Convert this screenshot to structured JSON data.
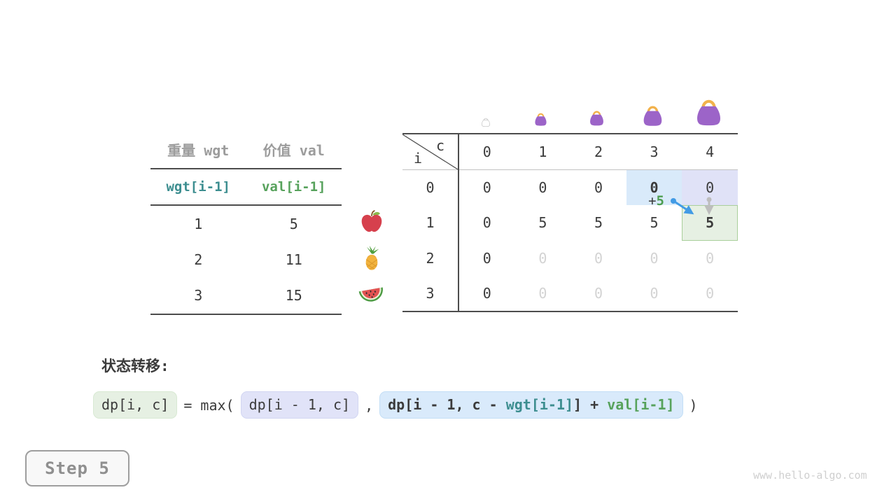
{
  "colors": {
    "accent_teal": "#3d8e90",
    "accent_green": "#57a25c",
    "highlight_blue": "#d9eafa",
    "highlight_lavender": "#e0e2f7",
    "highlight_green": "#e6f0e3",
    "arrow_blue": "#429be5",
    "arrow_gray": "#bdbdbd",
    "bag_purple": "#9c64c8",
    "bag_handle_orange": "#f2b24c"
  },
  "items_table": {
    "col_headers": [
      "重量 wgt",
      "价值 val"
    ],
    "formula_row": [
      "wgt[i-1]",
      "val[i-1]"
    ],
    "rows": [
      [
        "1",
        "5"
      ],
      [
        "2",
        "11"
      ],
      [
        "3",
        "15"
      ]
    ],
    "fruits": [
      "apple",
      "pineapple",
      "watermelon"
    ]
  },
  "dp_table": {
    "corner_col_label": "c",
    "corner_row_label": "i",
    "col_headers": [
      "0",
      "1",
      "2",
      "3",
      "4"
    ],
    "row_headers": [
      "0",
      "1",
      "2",
      "3"
    ],
    "bags_filled": [
      false,
      true,
      true,
      true,
      true
    ],
    "cells": [
      [
        "0",
        "0",
        "0",
        "0",
        "0"
      ],
      [
        "0",
        "5",
        "5",
        "5",
        "5"
      ],
      [
        "0",
        "0",
        "0",
        "0",
        "0"
      ],
      [
        "0",
        "0",
        "0",
        "0",
        "0"
      ]
    ],
    "cell_styles": [
      [
        "",
        "",
        "",
        "bold hl-blue",
        "hl-lavender"
      ],
      [
        "",
        "",
        "",
        "",
        "bold hl-green"
      ],
      [
        "",
        "dim",
        "dim",
        "dim",
        "dim"
      ],
      [
        "",
        "dim",
        "dim",
        "dim",
        "dim"
      ]
    ],
    "annotation_plus": "+",
    "annotation_value": "5"
  },
  "transition": {
    "label": "状态转移:",
    "lhs": "dp[i, c]",
    "operator": "= max(",
    "arg1": "dp[i - 1, c]",
    "separator": ",",
    "arg2_prefix": "dp[i - 1, c - ",
    "arg2_wgt": "wgt[i-1]",
    "arg2_infix": "] + ",
    "arg2_val": "val[i-1]",
    "closing": ")"
  },
  "step_label": "Step 5",
  "watermark": "www.hello-algo.com"
}
